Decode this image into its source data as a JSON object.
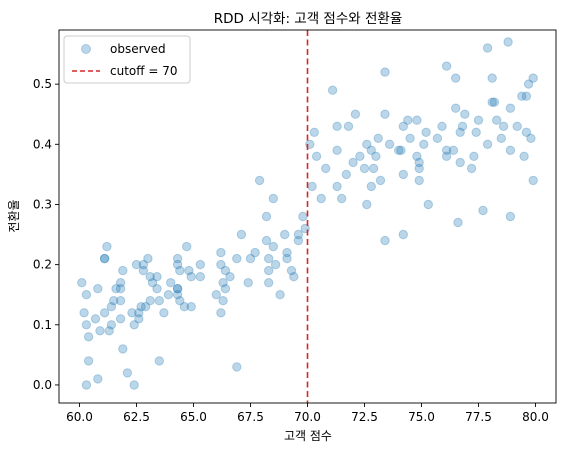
{
  "chart_data": {
    "type": "scatter",
    "title": "RDD 시각화: 고객 점수와 전환율",
    "xlabel": "고객 점수",
    "ylabel": "전환율",
    "xlim": [
      59.1,
      80.9
    ],
    "ylim": [
      -0.03,
      0.59
    ],
    "x_ticks": [
      60.0,
      62.5,
      65.0,
      67.5,
      70.0,
      72.5,
      75.0,
      77.5,
      80.0
    ],
    "x_tick_labels": [
      "60.0",
      "62.5",
      "65.0",
      "67.5",
      "70.0",
      "72.5",
      "75.0",
      "77.5",
      "80.0"
    ],
    "y_ticks": [
      0.0,
      0.1,
      0.2,
      0.3,
      0.4,
      0.5
    ],
    "y_tick_labels": [
      "0.0",
      "0.1",
      "0.2",
      "0.3",
      "0.4",
      "0.5"
    ],
    "grid": false,
    "legend_position": "top-left",
    "cutoff": 70,
    "series": [
      {
        "name": "observed",
        "color": "#1f77b4",
        "x": [
          60.3,
          60.4,
          60.9,
          60.1,
          61.1,
          60.7,
          60.8,
          61.5,
          60.2,
          61.3,
          62.3,
          60.3,
          61.4,
          61.8,
          61.8,
          61.9,
          61.8,
          61.4,
          62.5,
          62.7,
          61.1,
          61.6,
          63.1,
          62.9,
          62.4,
          61.8,
          63.1,
          63.2,
          62.8,
          62.6,
          62.8,
          63.4,
          63.4,
          63.5,
          62.6,
          64.7,
          64.6,
          63.0,
          63.7,
          63.9,
          64.8,
          64.3,
          64.3,
          64.0,
          65.3,
          64.4,
          64.4,
          64.3,
          65.3,
          64.3,
          64.9,
          64.9,
          66.2,
          66.2,
          66.3,
          66.0,
          66.4,
          67.5,
          67.1,
          66.4,
          66.2,
          66.6,
          66.3,
          68.2,
          66.9,
          68.6,
          67.4,
          68.3,
          67.7,
          68.5,
          69.3,
          69.1,
          69.9,
          69.1,
          68.3,
          68.2,
          69.6,
          69.4,
          68.8,
          68.3,
          70.8,
          70.2,
          71.3,
          70.3,
          71.7,
          70.1,
          72.0,
          70.4,
          71.3,
          71.3,
          71.5,
          72.5,
          72.6,
          72.1,
          72.8,
          72.3,
          73.1,
          71.8,
          72.8,
          72.6,
          73.0,
          73.6,
          72.9,
          73.4,
          73.2,
          74.1,
          74.5,
          74.9,
          74.2,
          74.8,
          74.8,
          74.2,
          74.9,
          74.0,
          75.2,
          74.4,
          76.1,
          75.9,
          74.9,
          75.7,
          76.1,
          75.1,
          76.7,
          76.8,
          76.4,
          76.9,
          76.7,
          77.3,
          76.5,
          77.5,
          77.9,
          77.4,
          77.2,
          78.6,
          78.5,
          78.1,
          78.9,
          78.3,
          79.2,
          78.1,
          79.6,
          79.5,
          79.8,
          78.9,
          79.6,
          79.7,
          79.4,
          79.9,
          60.3,
          60.4,
          60.8,
          61.2,
          62.1,
          62.4,
          66.9,
          61.1,
          61.9,
          63.5,
          64.3,
          67.9,
          68.5,
          69.0,
          69.6,
          69.8,
          73.4,
          74.2,
          76.6,
          77.7,
          78.9,
          73.4,
          75.3,
          76.1,
          78.8,
          79.9,
          77.9,
          78.2,
          70.6,
          71.1,
          76.5
        ],
        "y": [
          0.1,
          0.08,
          0.09,
          0.17,
          0.21,
          0.11,
          0.16,
          0.14,
          0.12,
          0.09,
          0.12,
          0.15,
          0.13,
          0.11,
          0.17,
          0.19,
          0.14,
          0.1,
          0.2,
          0.13,
          0.12,
          0.16,
          0.18,
          0.13,
          0.1,
          0.16,
          0.14,
          0.17,
          0.19,
          0.12,
          0.2,
          0.18,
          0.16,
          0.14,
          0.11,
          0.23,
          0.13,
          0.21,
          0.12,
          0.15,
          0.19,
          0.16,
          0.15,
          0.17,
          0.2,
          0.19,
          0.14,
          0.16,
          0.18,
          0.21,
          0.13,
          0.18,
          0.22,
          0.2,
          0.17,
          0.15,
          0.19,
          0.21,
          0.25,
          0.16,
          0.12,
          0.18,
          0.14,
          0.24,
          0.21,
          0.2,
          0.17,
          0.19,
          0.22,
          0.23,
          0.19,
          0.21,
          0.26,
          0.22,
          0.17,
          0.28,
          0.25,
          0.18,
          0.15,
          0.21,
          0.36,
          0.33,
          0.39,
          0.42,
          0.35,
          0.4,
          0.37,
          0.38,
          0.43,
          0.33,
          0.31,
          0.36,
          0.4,
          0.45,
          0.33,
          0.38,
          0.41,
          0.43,
          0.39,
          0.3,
          0.38,
          0.4,
          0.36,
          0.45,
          0.34,
          0.39,
          0.41,
          0.34,
          0.43,
          0.38,
          0.44,
          0.35,
          0.37,
          0.39,
          0.42,
          0.44,
          0.38,
          0.43,
          0.36,
          0.41,
          0.39,
          0.4,
          0.37,
          0.43,
          0.39,
          0.45,
          0.42,
          0.38,
          0.46,
          0.44,
          0.4,
          0.42,
          0.36,
          0.43,
          0.41,
          0.47,
          0.39,
          0.44,
          0.43,
          0.51,
          0.48,
          0.38,
          0.41,
          0.46,
          0.42,
          0.5,
          0.48,
          0.51,
          0.0,
          0.04,
          0.01,
          0.23,
          0.02,
          0.0,
          0.03,
          0.21,
          0.06,
          0.04,
          0.2,
          0.34,
          0.31,
          0.25,
          0.24,
          0.28,
          0.24,
          0.25,
          0.27,
          0.29,
          0.28,
          0.52,
          0.3,
          0.53,
          0.57,
          0.34,
          0.56,
          0.47,
          0.31,
          0.49,
          0.51
        ]
      }
    ],
    "cutoff_line": {
      "name": "cutoff = 70",
      "color": "#d62728",
      "style": "dashed"
    }
  }
}
